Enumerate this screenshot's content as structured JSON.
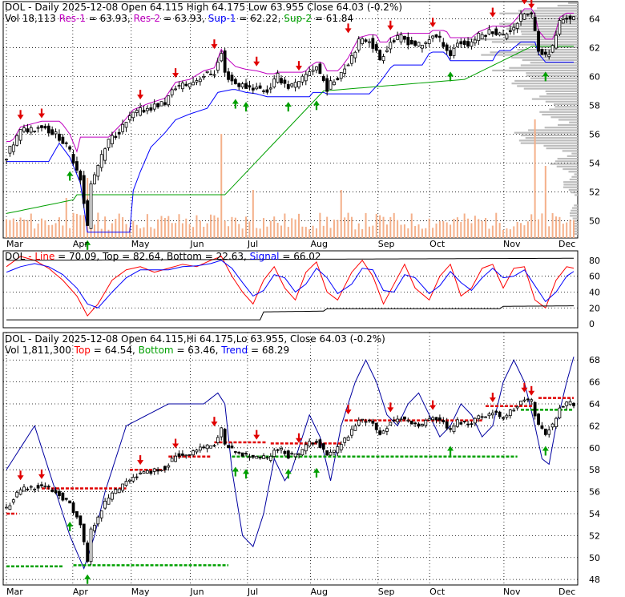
{
  "chart_data": [
    {
      "type": "candlestick",
      "ticker": "DOL",
      "header": {
        "line1": [
          {
            "text": "DOL - Daily 2025-12-08 Open 64.115  High 64.175  Low 63.955  Close 64.03 (-0.2%)",
            "color": "#000000"
          }
        ],
        "line2": [
          {
            "text": "Vol 18,113",
            "color": "#000000"
          },
          {
            "text": "Res-1",
            "color": "#c000c0"
          },
          {
            "text": "= 63.93,",
            "color": "#000000"
          },
          {
            "text": "Res-2",
            "color": "#c000c0"
          },
          {
            "text": "= 63.93,",
            "color": "#000000"
          },
          {
            "text": "Sup-1",
            "color": "#0000ff"
          },
          {
            "text": "= 62.22,",
            "color": "#000000"
          },
          {
            "text": "Sup-2",
            "color": "#00a000"
          },
          {
            "text": "= 61.84",
            "color": "#000000"
          }
        ]
      },
      "ylim": [
        48.8,
        65.2
      ],
      "yticks": [
        50,
        52,
        54,
        56,
        58,
        60,
        62,
        64
      ],
      "months": [
        "Mar",
        "Apr",
        "May",
        "Jun",
        "Jul",
        "Aug",
        "Sep",
        "Oct",
        "Nov",
        "Dec"
      ],
      "close_anchors": [
        [
          0,
          54.5
        ],
        [
          4,
          56.2
        ],
        [
          10,
          56.6
        ],
        [
          15,
          55.8
        ],
        [
          18,
          54.8
        ],
        [
          21,
          53.0
        ],
        [
          23,
          49.6
        ],
        [
          24,
          52.5
        ],
        [
          26,
          53.8
        ],
        [
          29,
          55.5
        ],
        [
          33,
          56.5
        ],
        [
          36,
          57.4
        ],
        [
          40,
          57.8
        ],
        [
          45,
          58.2
        ],
        [
          48,
          59.3
        ],
        [
          52,
          59.5
        ],
        [
          56,
          60.1
        ],
        [
          59,
          60.3
        ],
        [
          61,
          61.6
        ],
        [
          62,
          60.2
        ],
        [
          65,
          59.5
        ],
        [
          68,
          59.3
        ],
        [
          71,
          59.2
        ],
        [
          74,
          59.0
        ],
        [
          77,
          60.0
        ],
        [
          80,
          59.3
        ],
        [
          83,
          59.5
        ],
        [
          86,
          60.4
        ],
        [
          88,
          60.7
        ],
        [
          91,
          59.2
        ],
        [
          94,
          60.0
        ],
        [
          97,
          61.0
        ],
        [
          100,
          62.4
        ],
        [
          103,
          62.6
        ],
        [
          106,
          61.2
        ],
        [
          109,
          62.4
        ],
        [
          112,
          62.7
        ],
        [
          115,
          62.3
        ],
        [
          118,
          62.1
        ],
        [
          121,
          62.9
        ],
        [
          124,
          62.3
        ],
        [
          126,
          61.5
        ],
        [
          128,
          62.4
        ],
        [
          131,
          62.2
        ],
        [
          134,
          62.8
        ],
        [
          138,
          63.2
        ],
        [
          141,
          62.8
        ],
        [
          144,
          63.5
        ],
        [
          147,
          64.4
        ],
        [
          149,
          64.2
        ],
        [
          151,
          62.0
        ],
        [
          153,
          61.4
        ],
        [
          155,
          62.0
        ],
        [
          157,
          63.8
        ],
        [
          159,
          64.1
        ],
        [
          161,
          64.03
        ]
      ],
      "volume": {
        "ylim": [
          0,
          1
        ]
      },
      "resistance_arrows": [
        [
          4,
          56.9
        ],
        [
          10,
          57.0
        ],
        [
          38,
          58.3
        ],
        [
          48,
          59.8
        ],
        [
          59,
          61.8
        ],
        [
          71,
          60.6
        ],
        [
          83,
          60.3
        ],
        [
          97,
          62.9
        ],
        [
          109,
          63.1
        ],
        [
          121,
          63.3
        ],
        [
          138,
          64.0
        ],
        [
          147,
          64.9
        ],
        [
          149,
          64.6
        ]
      ],
      "support_arrows": [
        [
          18,
          54.0
        ],
        [
          23,
          49.2
        ],
        [
          65,
          59.0
        ],
        [
          68,
          58.8
        ],
        [
          80,
          58.8
        ],
        [
          88,
          58.9
        ],
        [
          126,
          60.9
        ],
        [
          153,
          60.9
        ]
      ],
      "support_profile_levels": [
        [
          49.5,
          0.05
        ],
        [
          50.5,
          0.08
        ],
        [
          52.5,
          0.15
        ],
        [
          54.0,
          0.25
        ],
        [
          55.5,
          0.55
        ],
        [
          56.0,
          0.6
        ],
        [
          57.5,
          0.35
        ],
        [
          58.5,
          0.45
        ],
        [
          59.5,
          0.7
        ],
        [
          60.5,
          0.8
        ],
        [
          61.5,
          0.9
        ],
        [
          62.5,
          0.95
        ],
        [
          63.5,
          0.85
        ],
        [
          64.3,
          0.7
        ]
      ]
    },
    {
      "type": "line",
      "header": [
        {
          "text": "DOL",
          "color": "#000000"
        },
        {
          "text": "- Line",
          "color": "#ff0000"
        },
        {
          "text": "= 70.09,",
          "color": "#000000"
        },
        {
          "text": "Top",
          "color": "#000000"
        },
        {
          "text": "= 82.64,",
          "color": "#000000"
        },
        {
          "text": "Bottom",
          "color": "#000000"
        },
        {
          "text": "= 22.63,",
          "color": "#000000"
        },
        {
          "text": "Signal",
          "color": "#0000ff"
        },
        {
          "text": "= 66.02",
          "color": "#000000"
        }
      ],
      "ylim": [
        -5,
        92
      ],
      "yticks": [
        0,
        20,
        40,
        60,
        80
      ],
      "series": [
        {
          "name": "Line",
          "color": "#ff0000",
          "anchors": [
            [
              0,
              72
            ],
            [
              4,
              85
            ],
            [
              8,
              80
            ],
            [
              12,
              70
            ],
            [
              16,
              55
            ],
            [
              20,
              35
            ],
            [
              23,
              10
            ],
            [
              26,
              25
            ],
            [
              30,
              55
            ],
            [
              34,
              68
            ],
            [
              38,
              72
            ],
            [
              42,
              65
            ],
            [
              46,
              70
            ],
            [
              50,
              75
            ],
            [
              54,
              72
            ],
            [
              58,
              80
            ],
            [
              61,
              85
            ],
            [
              64,
              60
            ],
            [
              67,
              40
            ],
            [
              70,
              25
            ],
            [
              73,
              55
            ],
            [
              76,
              72
            ],
            [
              79,
              45
            ],
            [
              82,
              30
            ],
            [
              85,
              65
            ],
            [
              88,
              78
            ],
            [
              91,
              40
            ],
            [
              94,
              30
            ],
            [
              98,
              65
            ],
            [
              101,
              80
            ],
            [
              104,
              60
            ],
            [
              107,
              25
            ],
            [
              110,
              50
            ],
            [
              113,
              75
            ],
            [
              116,
              45
            ],
            [
              120,
              30
            ],
            [
              123,
              60
            ],
            [
              126,
              75
            ],
            [
              129,
              35
            ],
            [
              132,
              45
            ],
            [
              135,
              70
            ],
            [
              138,
              75
            ],
            [
              141,
              45
            ],
            [
              144,
              70
            ],
            [
              147,
              72
            ],
            [
              150,
              30
            ],
            [
              153,
              20
            ],
            [
              156,
              55
            ],
            [
              159,
              72
            ],
            [
              161,
              70
            ]
          ]
        },
        {
          "name": "Signal",
          "color": "#0000ff",
          "anchors": [
            [
              0,
              65
            ],
            [
              4,
              72
            ],
            [
              8,
              76
            ],
            [
              12,
              72
            ],
            [
              16,
              62
            ],
            [
              20,
              45
            ],
            [
              23,
              25
            ],
            [
              26,
              20
            ],
            [
              30,
              40
            ],
            [
              34,
              58
            ],
            [
              38,
              68
            ],
            [
              42,
              68
            ],
            [
              46,
              68
            ],
            [
              50,
              72
            ],
            [
              54,
              73
            ],
            [
              58,
              76
            ],
            [
              61,
              80
            ],
            [
              64,
              70
            ],
            [
              67,
              52
            ],
            [
              70,
              35
            ],
            [
              73,
              42
            ],
            [
              76,
              62
            ],
            [
              79,
              58
            ],
            [
              82,
              40
            ],
            [
              85,
              50
            ],
            [
              88,
              70
            ],
            [
              91,
              58
            ],
            [
              94,
              38
            ],
            [
              98,
              50
            ],
            [
              101,
              70
            ],
            [
              104,
              68
            ],
            [
              107,
              42
            ],
            [
              110,
              40
            ],
            [
              113,
              62
            ],
            [
              116,
              58
            ],
            [
              120,
              38
            ],
            [
              123,
              48
            ],
            [
              126,
              66
            ],
            [
              129,
              52
            ],
            [
              132,
              42
            ],
            [
              135,
              58
            ],
            [
              138,
              70
            ],
            [
              141,
              58
            ],
            [
              144,
              60
            ],
            [
              147,
              68
            ],
            [
              150,
              48
            ],
            [
              153,
              28
            ],
            [
              156,
              40
            ],
            [
              159,
              60
            ],
            [
              161,
              66
            ]
          ]
        },
        {
          "name": "Top",
          "color": "#000000",
          "anchors": [
            [
              0,
              80
            ],
            [
              161,
              82.64
            ]
          ]
        },
        {
          "name": "Bottom",
          "color": "#000000",
          "anchors": [
            [
              0,
              5
            ],
            [
              72,
              5
            ],
            [
              73,
              15
            ],
            [
              90,
              16
            ],
            [
              91,
              19
            ],
            [
              140,
              19
            ],
            [
              141,
              22
            ],
            [
              161,
              22.63
            ]
          ]
        }
      ]
    },
    {
      "type": "candlestick",
      "header": {
        "line1": [
          {
            "text": "DOL - Daily 2025-12-08 Open 64.115,Hi 64.175,Lo 63.955, Close 64.03 (-0.2%)",
            "color": "#000000"
          }
        ],
        "line2": [
          {
            "text": "Vol 1,811,300",
            "color": "#000000"
          },
          {
            "text": "Top",
            "color": "#ff0000"
          },
          {
            "text": "= 64.54,",
            "color": "#000000"
          },
          {
            "text": "Bottom",
            "color": "#00a000"
          },
          {
            "text": "= 63.46,",
            "color": "#000000"
          },
          {
            "text": "Trend",
            "color": "#0000ff"
          },
          {
            "text": "= 68.29",
            "color": "#000000"
          }
        ]
      },
      "ylim": [
        47.5,
        70.5
      ],
      "yticks": [
        48,
        50,
        52,
        54,
        56,
        58,
        60,
        62,
        64,
        66,
        68
      ],
      "months": [
        "Mar",
        "Apr",
        "May",
        "Jun",
        "Jul",
        "Aug",
        "Sep",
        "Oct",
        "Nov",
        "Dec"
      ],
      "top_segments": [
        [
          0,
          3,
          54.0
        ],
        [
          10,
          34,
          56.3
        ],
        [
          35,
          45,
          58.0
        ],
        [
          46,
          58,
          59.2
        ],
        [
          59,
          74,
          60.5
        ],
        [
          75,
          95,
          60.4
        ],
        [
          96,
          135,
          62.5
        ],
        [
          136,
          150,
          63.8
        ],
        [
          151,
          161,
          64.54
        ]
      ],
      "bottom_segments": [
        [
          0,
          16,
          49.2
        ],
        [
          19,
          63,
          49.3
        ],
        [
          64,
          145,
          59.2
        ],
        [
          146,
          161,
          63.46
        ]
      ],
      "trend_anchors": [
        [
          0,
          58
        ],
        [
          4,
          60
        ],
        [
          8,
          62
        ],
        [
          12,
          58
        ],
        [
          18,
          52
        ],
        [
          22,
          49
        ],
        [
          25,
          52
        ],
        [
          28,
          56
        ],
        [
          34,
          62
        ],
        [
          40,
          63
        ],
        [
          46,
          64
        ],
        [
          52,
          64
        ],
        [
          56,
          64
        ],
        [
          60,
          65
        ],
        [
          62,
          64
        ],
        [
          64,
          58
        ],
        [
          67,
          52
        ],
        [
          70,
          51
        ],
        [
          73,
          54
        ],
        [
          76,
          59
        ],
        [
          79,
          57
        ],
        [
          81,
          58
        ],
        [
          83,
          60
        ],
        [
          86,
          63
        ],
        [
          89,
          61
        ],
        [
          92,
          57
        ],
        [
          95,
          62
        ],
        [
          99,
          66
        ],
        [
          102,
          68
        ],
        [
          105,
          66
        ],
        [
          108,
          63
        ],
        [
          111,
          62
        ],
        [
          114,
          64
        ],
        [
          117,
          65
        ],
        [
          120,
          63
        ],
        [
          123,
          61
        ],
        [
          126,
          62
        ],
        [
          129,
          64
        ],
        [
          132,
          63
        ],
        [
          135,
          61
        ],
        [
          138,
          62
        ],
        [
          141,
          66
        ],
        [
          144,
          68
        ],
        [
          147,
          66
        ],
        [
          150,
          62
        ],
        [
          152,
          59
        ],
        [
          154,
          58.5
        ],
        [
          156,
          62
        ],
        [
          159,
          66
        ],
        [
          161,
          68.29
        ]
      ]
    }
  ]
}
